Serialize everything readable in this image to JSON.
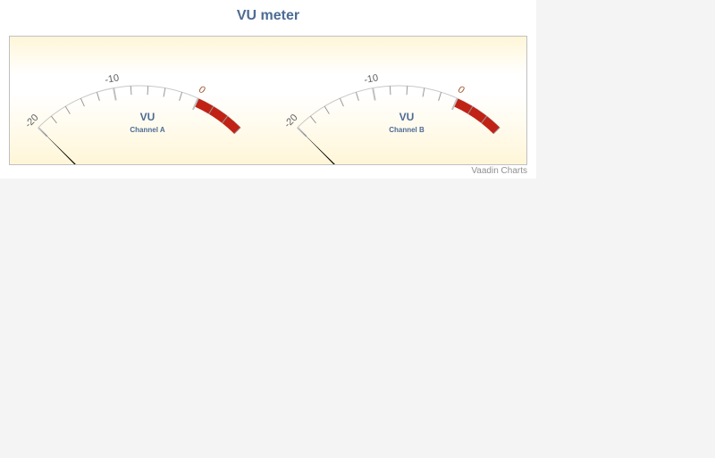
{
  "title": "VU meter",
  "credits": "Vaadin Charts",
  "chart_data": [
    {
      "type": "gauge",
      "name": "Channel A",
      "label": "VU",
      "subtitle": "Channel A",
      "min": -20,
      "max": 6,
      "value": -20,
      "tick_labels": [
        "-20",
        "-10",
        "0"
      ],
      "band": {
        "from": 0,
        "to": 6,
        "color": "#c02316"
      },
      "label_color": "#4d6b94",
      "needle_color": "#000000"
    },
    {
      "type": "gauge",
      "name": "Channel B",
      "label": "VU",
      "subtitle": "Channel B",
      "min": -20,
      "max": 6,
      "value": -20,
      "tick_labels": [
        "-20",
        "-10",
        "0"
      ],
      "band": {
        "from": 0,
        "to": 6,
        "color": "#c02316"
      },
      "label_color": "#4d6b94",
      "needle_color": "#000000"
    }
  ]
}
